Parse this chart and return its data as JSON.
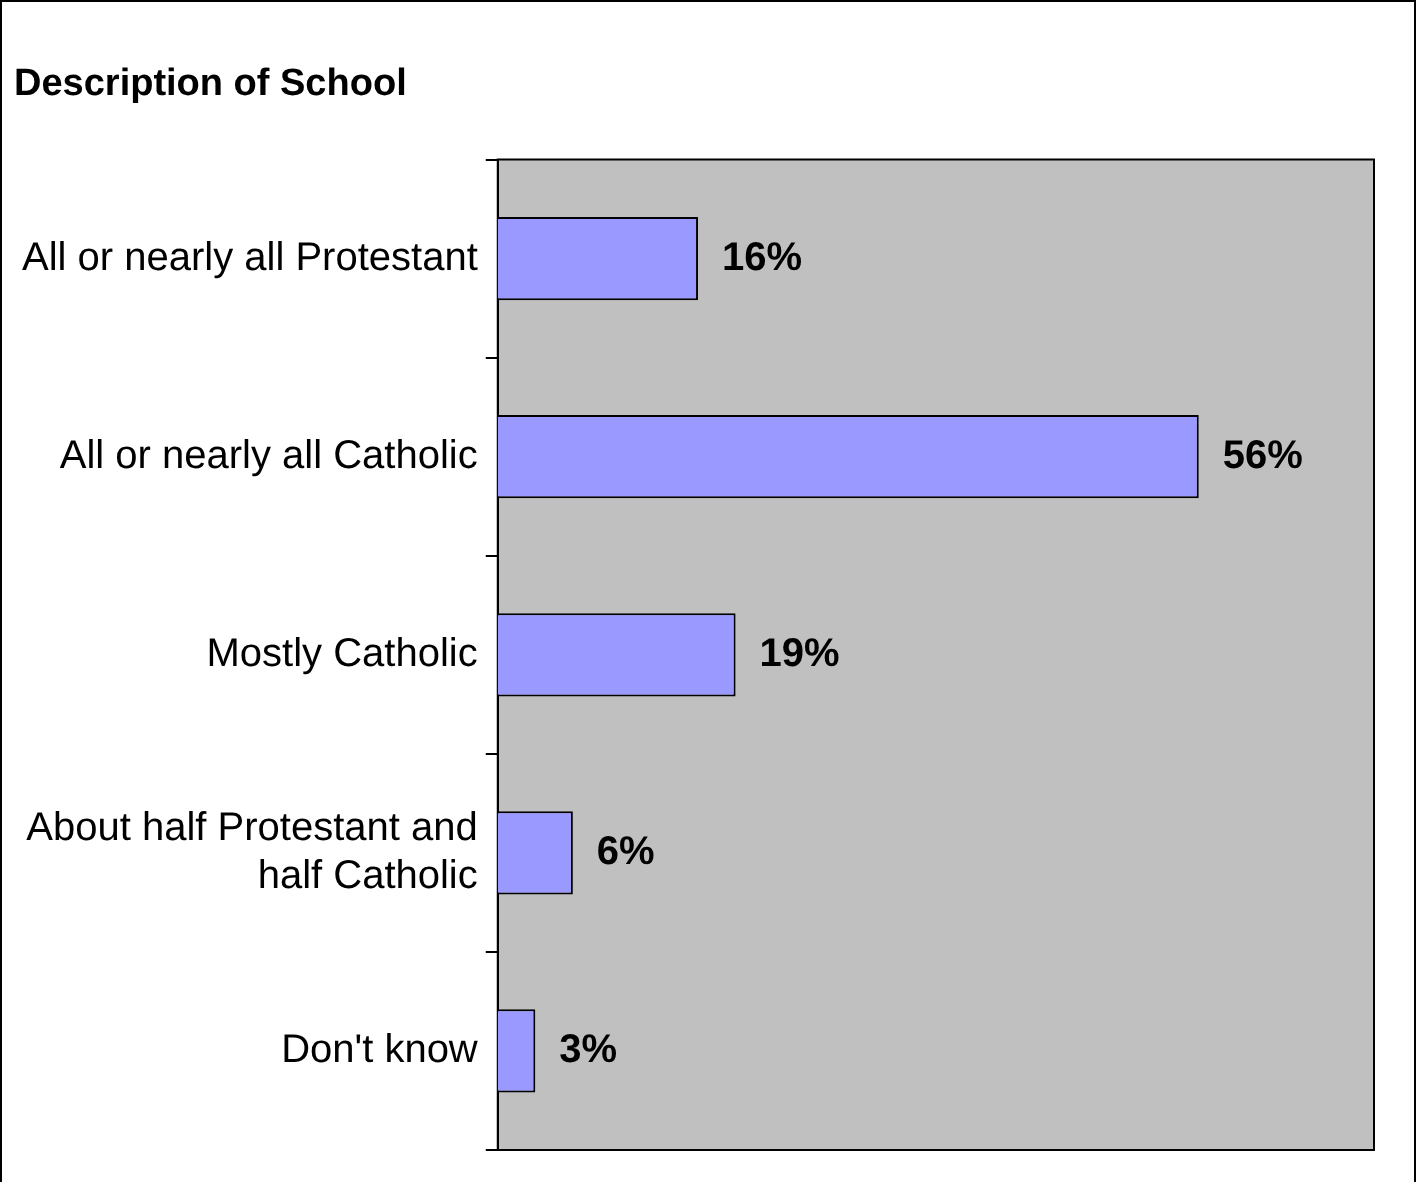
{
  "chart_data": {
    "type": "bar",
    "orientation": "horizontal",
    "title": "Description of School",
    "categories": [
      "All or nearly all Protestant",
      "All or nearly all Catholic",
      "Mostly Catholic",
      "About half Protestant and half Catholic",
      "Don't know"
    ],
    "values": [
      16,
      56,
      19,
      6,
      3
    ],
    "color": "#9999ff",
    "data_labels": true,
    "value_labels": [
      "16%",
      "56%",
      "19%",
      "6%",
      "3%"
    ],
    "legend": false
  }
}
